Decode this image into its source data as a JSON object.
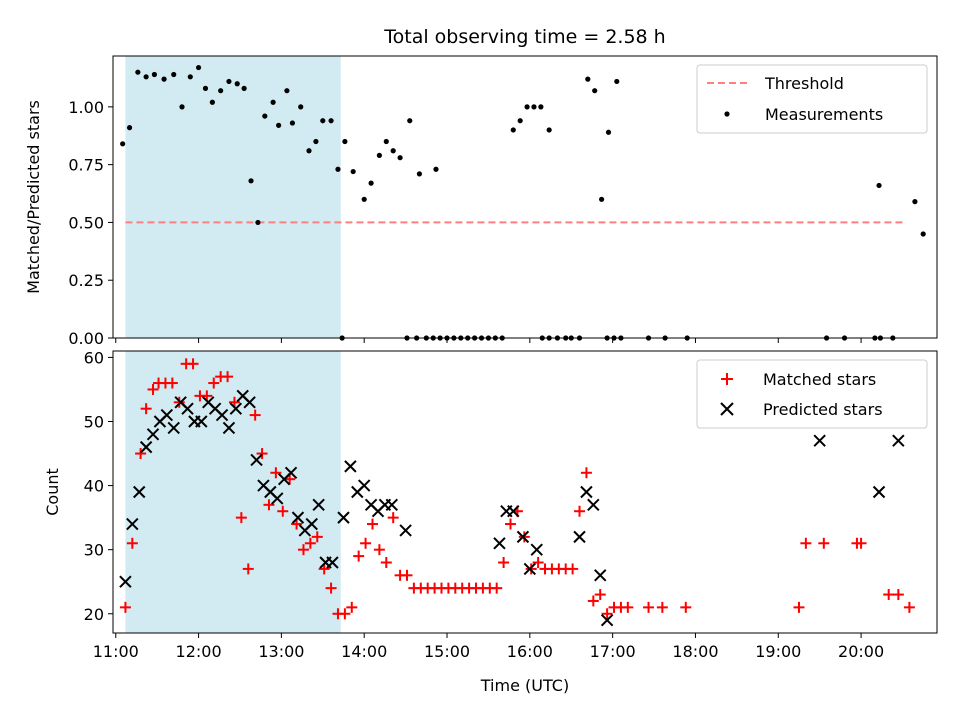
{
  "chart_data": [
    {
      "type": "scatter",
      "title": "Total observing time = 2.58 h",
      "xlabel": "",
      "ylabel": "Matched/Predicted stars",
      "xlim": [
        "10:58",
        "20:55"
      ],
      "ylim": [
        0,
        1.22
      ],
      "yticks": [
        0.0,
        0.25,
        0.5,
        0.75,
        1.0
      ],
      "ytick_labels": [
        "0.00",
        "0.25",
        "0.50",
        "0.75",
        "1.00"
      ],
      "shaded_span": [
        "11:07",
        "13:43"
      ],
      "colors": {
        "shade": "#add8e6",
        "threshold": "#ff7f7f",
        "points": "#000000"
      },
      "threshold": {
        "name": "Threshold",
        "y": 0.5,
        "x": [
          "11:07",
          "20:30"
        ]
      },
      "legend": {
        "placement": "upper right",
        "entries": [
          "Threshold",
          "Measurements"
        ]
      },
      "series": [
        {
          "name": "Measurements",
          "points": [
            [
              "11:05",
              0.84
            ],
            [
              "11:10",
              0.91
            ],
            [
              "11:16",
              1.15
            ],
            [
              "11:22",
              1.13
            ],
            [
              "11:28",
              1.14
            ],
            [
              "11:35",
              1.12
            ],
            [
              "11:42",
              1.14
            ],
            [
              "11:48",
              1.0
            ],
            [
              "11:54",
              1.13
            ],
            [
              "12:00",
              1.17
            ],
            [
              "12:05",
              1.08
            ],
            [
              "12:10",
              1.02
            ],
            [
              "12:16",
              1.07
            ],
            [
              "12:22",
              1.11
            ],
            [
              "12:28",
              1.1
            ],
            [
              "12:33",
              1.08
            ],
            [
              "12:38",
              0.68
            ],
            [
              "12:43",
              0.5
            ],
            [
              "12:48",
              0.96
            ],
            [
              "12:54",
              1.02
            ],
            [
              "12:58",
              0.92
            ],
            [
              "13:04",
              1.07
            ],
            [
              "13:08",
              0.93
            ],
            [
              "13:14",
              1.0
            ],
            [
              "13:20",
              0.81
            ],
            [
              "13:25",
              0.85
            ],
            [
              "13:30",
              0.94
            ],
            [
              "13:36",
              0.94
            ],
            [
              "13:41",
              0.73
            ],
            [
              "13:46",
              0.85
            ],
            [
              "13:52",
              0.72
            ],
            [
              "14:00",
              0.6
            ],
            [
              "14:05",
              0.67
            ],
            [
              "14:11",
              0.79
            ],
            [
              "14:16",
              0.85
            ],
            [
              "14:21",
              0.81
            ],
            [
              "14:26",
              0.78
            ],
            [
              "14:33",
              0.94
            ],
            [
              "14:40",
              0.71
            ],
            [
              "14:52",
              0.73
            ],
            [
              "15:48",
              0.9
            ],
            [
              "15:53",
              0.94
            ],
            [
              "15:58",
              1.0
            ],
            [
              "16:03",
              1.0
            ],
            [
              "16:08",
              1.0
            ],
            [
              "16:14",
              0.9
            ],
            [
              "16:42",
              1.12
            ],
            [
              "16:47",
              1.07
            ],
            [
              "16:52",
              0.6
            ],
            [
              "16:57",
              0.89
            ],
            [
              "17:03",
              1.11
            ],
            [
              "20:13",
              0.66
            ],
            [
              "20:39",
              0.59
            ],
            [
              "20:45",
              0.45
            ],
            [
              "13:44",
              0
            ],
            [
              "14:31",
              0
            ],
            [
              "14:38",
              0
            ],
            [
              "14:45",
              0
            ],
            [
              "14:50",
              0
            ],
            [
              "14:55",
              0
            ],
            [
              "15:00",
              0
            ],
            [
              "15:05",
              0
            ],
            [
              "15:10",
              0
            ],
            [
              "15:15",
              0
            ],
            [
              "15:20",
              0
            ],
            [
              "15:25",
              0
            ],
            [
              "15:30",
              0
            ],
            [
              "15:35",
              0
            ],
            [
              "15:40",
              0
            ],
            [
              "16:09",
              0
            ],
            [
              "16:14",
              0
            ],
            [
              "16:20",
              0
            ],
            [
              "16:26",
              0
            ],
            [
              "16:30",
              0
            ],
            [
              "16:36",
              0
            ],
            [
              "16:56",
              0
            ],
            [
              "17:01",
              0
            ],
            [
              "17:06",
              0
            ],
            [
              "17:26",
              0
            ],
            [
              "17:38",
              0
            ],
            [
              "17:54",
              0
            ],
            [
              "19:35",
              0
            ],
            [
              "19:48",
              0
            ],
            [
              "20:10",
              0
            ],
            [
              "20:14",
              0
            ],
            [
              "20:23",
              0
            ]
          ]
        }
      ]
    },
    {
      "type": "scatter",
      "title": "",
      "xlabel": "Time (UTC)",
      "ylabel": "Count",
      "xlim": [
        "10:58",
        "20:55"
      ],
      "ylim": [
        17,
        61
      ],
      "xticks": [
        "11:00",
        "12:00",
        "13:00",
        "14:00",
        "15:00",
        "16:00",
        "17:00",
        "18:00",
        "19:00",
        "20:00"
      ],
      "yticks": [
        20,
        30,
        40,
        50,
        60
      ],
      "ytick_labels": [
        "20",
        "30",
        "40",
        "50",
        "60"
      ],
      "shaded_span": [
        "11:07",
        "13:43"
      ],
      "colors": {
        "shade": "#add8e6",
        "matched": "#ff0000",
        "predicted": "#000000"
      },
      "legend": {
        "placement": "upper right",
        "entries": [
          "Matched stars",
          "Predicted stars"
        ]
      },
      "series": [
        {
          "name": "Matched stars",
          "points": [
            [
              "11:07",
              21
            ],
            [
              "11:12",
              31
            ],
            [
              "11:18",
              45
            ],
            [
              "11:22",
              52
            ],
            [
              "11:27",
              55
            ],
            [
              "11:31",
              56
            ],
            [
              "11:36",
              56
            ],
            [
              "11:41",
              56
            ],
            [
              "11:46",
              53
            ],
            [
              "11:51",
              59
            ],
            [
              "11:56",
              59
            ],
            [
              "12:01",
              54
            ],
            [
              "12:06",
              54
            ],
            [
              "12:11",
              56
            ],
            [
              "12:16",
              57
            ],
            [
              "12:21",
              57
            ],
            [
              "12:26",
              53
            ],
            [
              "12:31",
              35
            ],
            [
              "12:36",
              27
            ],
            [
              "12:41",
              51
            ],
            [
              "12:46",
              45
            ],
            [
              "12:51",
              37
            ],
            [
              "12:56",
              42
            ],
            [
              "13:01",
              36
            ],
            [
              "13:06",
              41
            ],
            [
              "13:11",
              34
            ],
            [
              "13:16",
              30
            ],
            [
              "13:21",
              31
            ],
            [
              "13:26",
              32
            ],
            [
              "13:31",
              27
            ],
            [
              "13:36",
              24
            ],
            [
              "13:41",
              20
            ],
            [
              "13:46",
              20
            ],
            [
              "13:51",
              21
            ],
            [
              "13:56",
              29
            ],
            [
              "14:01",
              31
            ],
            [
              "14:06",
              34
            ],
            [
              "14:11",
              30
            ],
            [
              "14:16",
              28
            ],
            [
              "14:21",
              35
            ],
            [
              "14:26",
              26
            ],
            [
              "14:31",
              26
            ],
            [
              "14:36",
              24
            ],
            [
              "14:41",
              24
            ],
            [
              "14:46",
              24
            ],
            [
              "14:51",
              24
            ],
            [
              "14:56",
              24
            ],
            [
              "15:01",
              24
            ],
            [
              "15:06",
              24
            ],
            [
              "15:11",
              24
            ],
            [
              "15:16",
              24
            ],
            [
              "15:21",
              24
            ],
            [
              "15:26",
              24
            ],
            [
              "15:31",
              24
            ],
            [
              "15:36",
              24
            ],
            [
              "15:41",
              28
            ],
            [
              "15:46",
              34
            ],
            [
              "15:51",
              36
            ],
            [
              "15:56",
              32
            ],
            [
              "16:01",
              27
            ],
            [
              "16:06",
              28
            ],
            [
              "16:11",
              27
            ],
            [
              "16:16",
              27
            ],
            [
              "16:21",
              27
            ],
            [
              "16:26",
              27
            ],
            [
              "16:31",
              27
            ],
            [
              "16:36",
              36
            ],
            [
              "16:41",
              42
            ],
            [
              "16:46",
              22
            ],
            [
              "16:51",
              23
            ],
            [
              "16:56",
              20
            ],
            [
              "17:01",
              21
            ],
            [
              "17:06",
              21
            ],
            [
              "17:11",
              21
            ],
            [
              "17:26",
              21
            ],
            [
              "17:36",
              21
            ],
            [
              "17:53",
              21
            ],
            [
              "19:15",
              21
            ],
            [
              "19:20",
              31
            ],
            [
              "19:33",
              31
            ],
            [
              "19:57",
              31
            ],
            [
              "20:00",
              31
            ],
            [
              "20:20",
              23
            ],
            [
              "20:27",
              23
            ],
            [
              "20:35",
              21
            ]
          ]
        },
        {
          "name": "Predicted stars",
          "points": [
            [
              "11:07",
              25
            ],
            [
              "11:12",
              34
            ],
            [
              "11:17",
              39
            ],
            [
              "11:22",
              46
            ],
            [
              "11:27",
              48
            ],
            [
              "11:32",
              50
            ],
            [
              "11:37",
              51
            ],
            [
              "11:42",
              49
            ],
            [
              "11:47",
              53
            ],
            [
              "11:52",
              52
            ],
            [
              "11:57",
              50
            ],
            [
              "12:02",
              50
            ],
            [
              "12:07",
              53
            ],
            [
              "12:12",
              52
            ],
            [
              "12:17",
              51
            ],
            [
              "12:22",
              49
            ],
            [
              "12:27",
              52
            ],
            [
              "12:32",
              54
            ],
            [
              "12:37",
              53
            ],
            [
              "12:42",
              44
            ],
            [
              "12:47",
              40
            ],
            [
              "12:52",
              39
            ],
            [
              "12:57",
              38
            ],
            [
              "13:02",
              41
            ],
            [
              "13:07",
              42
            ],
            [
              "13:12",
              35
            ],
            [
              "13:17",
              33
            ],
            [
              "13:22",
              34
            ],
            [
              "13:27",
              37
            ],
            [
              "13:32",
              28
            ],
            [
              "13:37",
              28
            ],
            [
              "13:45",
              35
            ],
            [
              "13:50",
              43
            ],
            [
              "13:55",
              39
            ],
            [
              "14:00",
              40
            ],
            [
              "14:05",
              37
            ],
            [
              "14:10",
              36
            ],
            [
              "14:15",
              37
            ],
            [
              "14:20",
              37
            ],
            [
              "14:30",
              33
            ],
            [
              "15:38",
              31
            ],
            [
              "15:43",
              36
            ],
            [
              "15:48",
              36
            ],
            [
              "15:55",
              32
            ],
            [
              "16:00",
              27
            ],
            [
              "16:05",
              30
            ],
            [
              "16:36",
              32
            ],
            [
              "16:41",
              39
            ],
            [
              "16:46",
              37
            ],
            [
              "16:51",
              26
            ],
            [
              "16:56",
              19
            ],
            [
              "19:30",
              47
            ],
            [
              "20:13",
              39
            ],
            [
              "20:27",
              47
            ]
          ]
        }
      ]
    }
  ]
}
